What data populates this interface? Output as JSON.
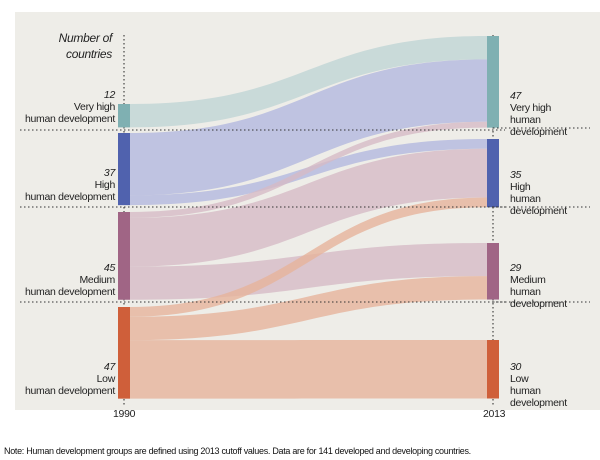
{
  "chart_data": {
    "type": "sankey",
    "axis_title": "Number of countries",
    "x_labels": [
      "1990",
      "2013"
    ],
    "nodes_1990": [
      {
        "key": "vh",
        "count": "12",
        "label": "Very high human development",
        "color": "#7fb0b2",
        "flow_color": "#bfd4d5"
      },
      {
        "key": "h",
        "count": "37",
        "label": "High human development",
        "color": "#5062ae",
        "flow_color": "#b3b8df"
      },
      {
        "key": "m",
        "count": "45",
        "label": "Medium human development",
        "color": "#a06585",
        "flow_color": "#d6bac6"
      },
      {
        "key": "l",
        "count": "47",
        "label": "Low human development",
        "color": "#cf5f3a",
        "flow_color": "#e6b39b"
      }
    ],
    "nodes_2013": [
      {
        "key": "vh",
        "count": "47",
        "label": "Very high human development"
      },
      {
        "key": "h",
        "count": "35",
        "label": "High human development"
      },
      {
        "key": "m",
        "count": "29",
        "label": "Medium human development"
      },
      {
        "key": "l",
        "count": "30",
        "label": "Low human development"
      }
    ],
    "flows": [
      {
        "from": "vh",
        "to": "vh",
        "value": 12
      },
      {
        "from": "h",
        "to": "vh",
        "value": 32
      },
      {
        "from": "h",
        "to": "h",
        "value": 5
      },
      {
        "from": "m",
        "to": "vh",
        "value": 3
      },
      {
        "from": "m",
        "to": "h",
        "value": 25
      },
      {
        "from": "m",
        "to": "m",
        "value": 17
      },
      {
        "from": "l",
        "to": "h",
        "value": 5
      },
      {
        "from": "l",
        "to": "m",
        "value": 12
      },
      {
        "from": "l",
        "to": "l",
        "value": 30
      }
    ]
  },
  "note": "Note: Human development groups are defined using 2013 cutoff values. Data are for 141 developed and developing countries."
}
